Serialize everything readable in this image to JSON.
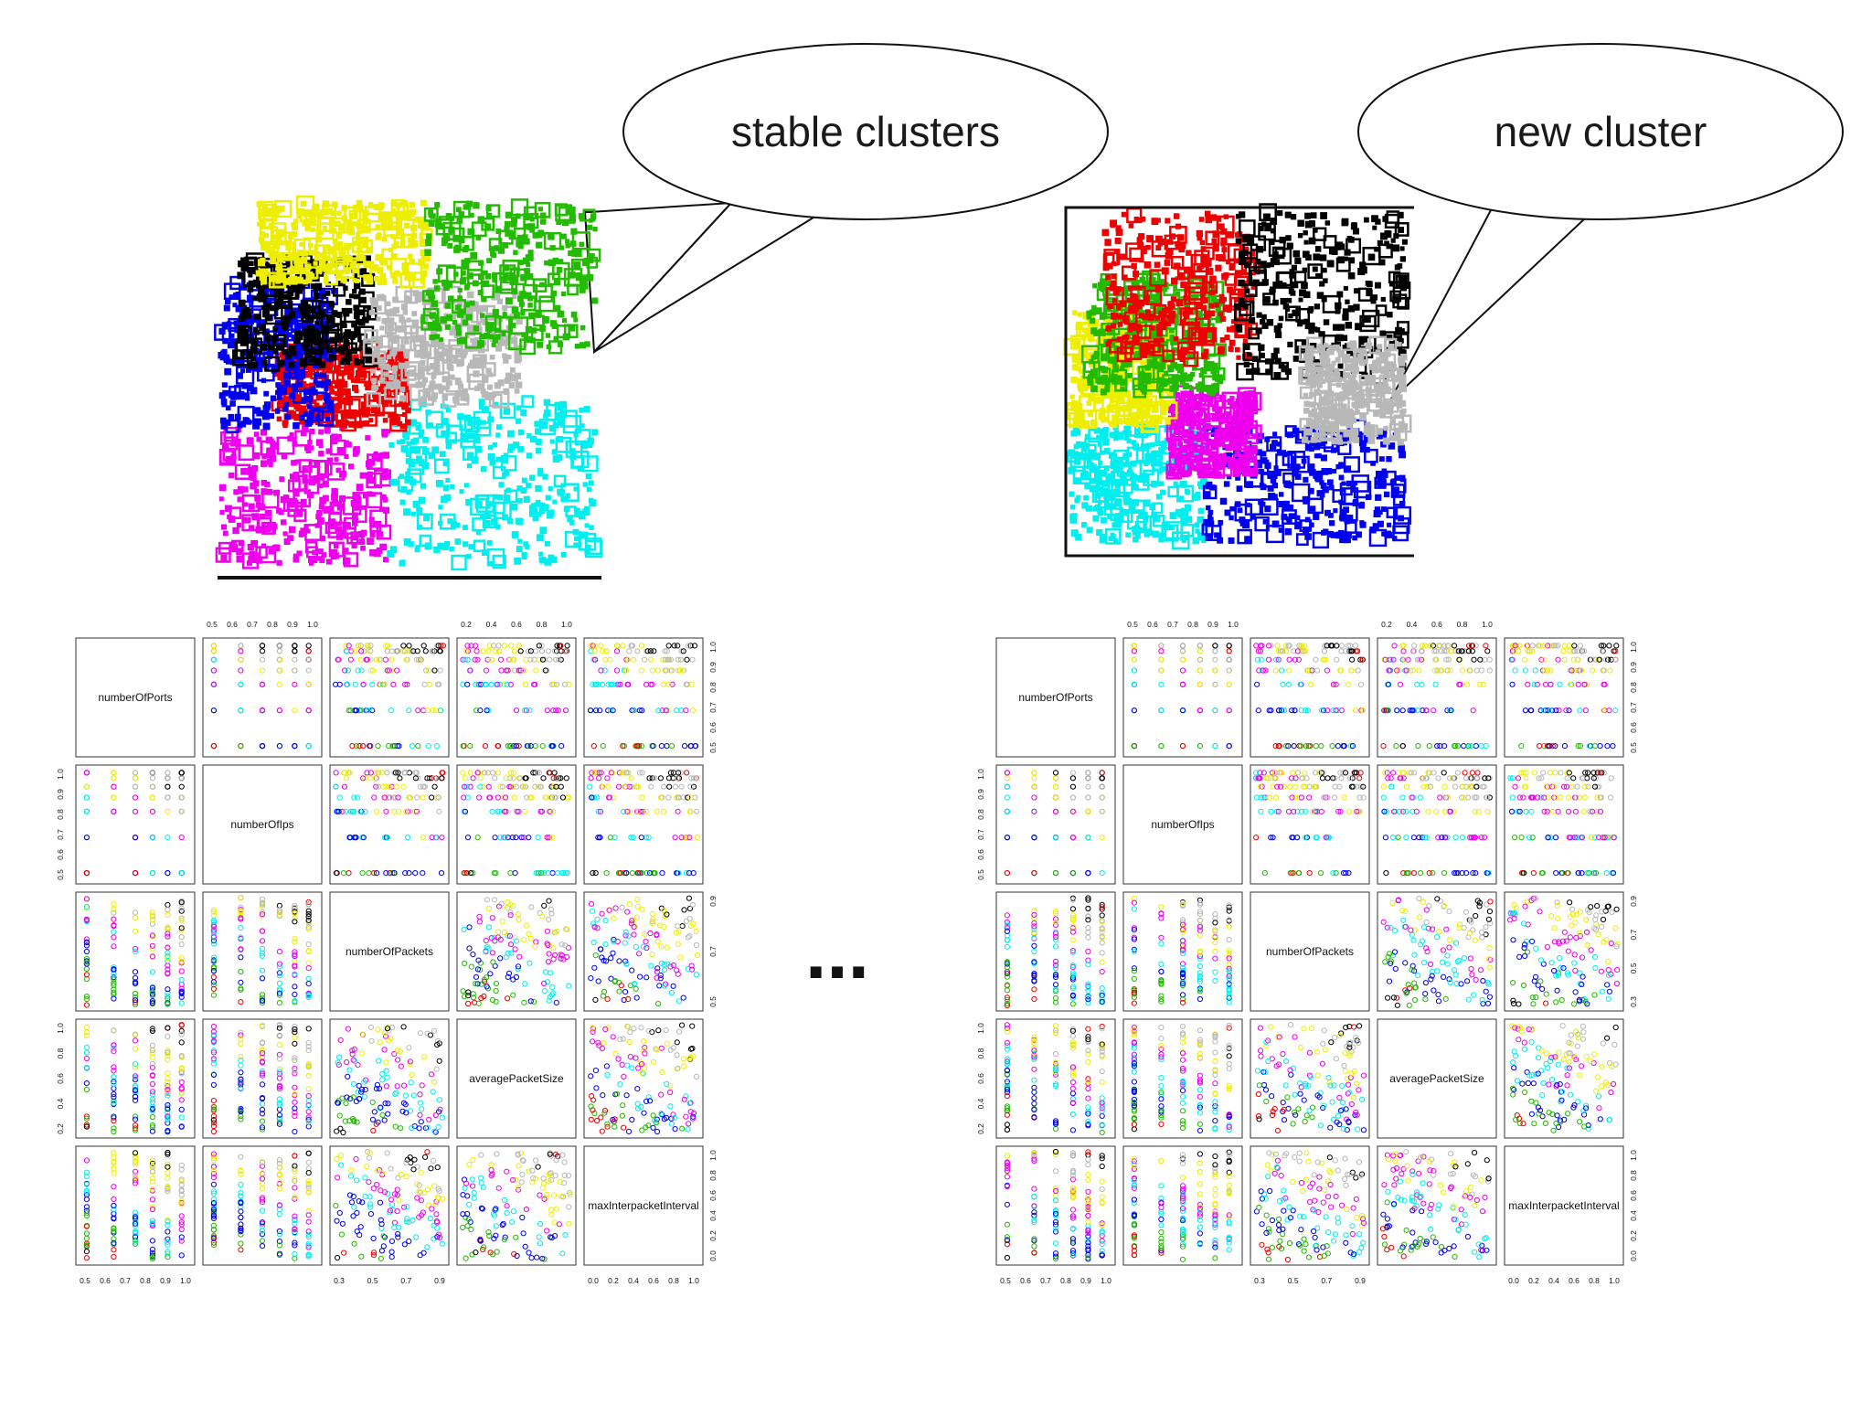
{
  "callouts": {
    "left_label": "stable clusters",
    "right_label": "new cluster"
  },
  "ellipsis": "...",
  "colors": {
    "black": "#000000",
    "red": "#ee0000",
    "green": "#22bb00",
    "blue": "#0000ee",
    "cyan": "#00eeee",
    "magenta": "#ee00ee",
    "yellow": "#eeee00",
    "gray": "#b8b8b8"
  },
  "chart_data": [
    {
      "type": "scatter",
      "id": "left-cluster-scatter",
      "description_type": "2D cluster map",
      "clusters": [
        {
          "color": "magenta",
          "region": [
            0.0,
            0.0,
            0.45,
            0.38
          ]
        },
        {
          "color": "cyan",
          "region": [
            0.45,
            0.0,
            1.0,
            0.45
          ]
        },
        {
          "color": "red",
          "region": [
            0.15,
            0.38,
            0.5,
            0.6
          ]
        },
        {
          "color": "blue",
          "region": [
            0.0,
            0.38,
            0.3,
            0.78
          ]
        },
        {
          "color": "black",
          "region": [
            0.05,
            0.55,
            0.4,
            0.85
          ]
        },
        {
          "color": "gray",
          "region": [
            0.4,
            0.45,
            0.8,
            0.75
          ]
        },
        {
          "color": "yellow",
          "region": [
            0.1,
            0.78,
            0.55,
            1.0
          ]
        },
        {
          "color": "green",
          "region": [
            0.55,
            0.6,
            1.0,
            1.0
          ]
        }
      ]
    },
    {
      "type": "scatter",
      "id": "right-cluster-scatter",
      "description_type": "2D cluster map",
      "clusters": [
        {
          "color": "cyan",
          "region": [
            0.0,
            0.0,
            0.4,
            0.35
          ]
        },
        {
          "color": "blue",
          "region": [
            0.4,
            0.0,
            1.0,
            0.35
          ]
        },
        {
          "color": "magenta",
          "region": [
            0.3,
            0.2,
            0.55,
            0.45
          ]
        },
        {
          "color": "yellow",
          "region": [
            0.0,
            0.35,
            0.3,
            0.7
          ]
        },
        {
          "color": "green",
          "region": [
            0.05,
            0.45,
            0.45,
            0.8
          ]
        },
        {
          "color": "red",
          "region": [
            0.1,
            0.55,
            0.55,
            1.0
          ]
        },
        {
          "color": "black",
          "region": [
            0.5,
            0.5,
            1.0,
            1.0
          ]
        },
        {
          "color": "gray",
          "region": [
            0.7,
            0.3,
            1.0,
            0.6
          ]
        }
      ]
    },
    {
      "type": "scatter",
      "id": "left-scatter-matrix",
      "variables": [
        "numberOfPorts",
        "numberOfIps",
        "numberOfPackets",
        "averagePacketSize",
        "maxInterpacketInterval"
      ],
      "top_axis_ticks": {
        "1": [
          "0.5",
          "0.6",
          "0.7",
          "0.8",
          "0.9",
          "1.0"
        ],
        "3": [
          "0.2",
          "0.4",
          "0.6",
          "0.8",
          "1.0"
        ]
      },
      "right_axis_ticks": {
        "0": [
          "0.5",
          "0.6",
          "0.7",
          "0.8",
          "0.9",
          "1.0"
        ],
        "2": [
          "0.5",
          "0.7",
          "0.9"
        ],
        "4": [
          "0.0",
          "0.2",
          "0.4",
          "0.6",
          "0.8",
          "1.0"
        ]
      },
      "left_axis_ticks": {
        "1": [
          "0.5",
          "0.6",
          "0.7",
          "0.8",
          "0.9",
          "1.0"
        ],
        "3": [
          "0.2",
          "0.4",
          "0.6",
          "0.8",
          "1.0"
        ]
      },
      "bottom_axis_ticks": {
        "0": [
          "0.5",
          "0.6",
          "0.7",
          "0.8",
          "0.9",
          "1.0"
        ],
        "2": [
          "0.3",
          "0.5",
          "0.7",
          "0.9"
        ],
        "4": [
          "0.0",
          "0.2",
          "0.4",
          "0.6",
          "0.8",
          "1.0"
        ]
      }
    },
    {
      "type": "scatter",
      "id": "right-scatter-matrix",
      "variables": [
        "numberOfPorts",
        "numberOfIps",
        "numberOfPackets",
        "averagePacketSize",
        "maxInterpacketInterval"
      ],
      "top_axis_ticks": {
        "1": [
          "0.5",
          "0.6",
          "0.7",
          "0.8",
          "0.9",
          "1.0"
        ],
        "3": [
          "0.2",
          "0.4",
          "0.6",
          "0.8",
          "1.0"
        ]
      },
      "right_axis_ticks": {
        "0": [
          "0.5",
          "0.6",
          "0.7",
          "0.8",
          "0.9",
          "1.0"
        ],
        "2": [
          "0.3",
          "0.5",
          "0.7",
          "0.9"
        ],
        "4": [
          "0.0",
          "0.2",
          "0.4",
          "0.6",
          "0.8",
          "1.0"
        ]
      },
      "left_axis_ticks": {
        "1": [
          "0.5",
          "0.6",
          "0.7",
          "0.8",
          "0.9",
          "1.0"
        ],
        "3": [
          "0.2",
          "0.4",
          "0.6",
          "0.8",
          "1.0"
        ]
      },
      "bottom_axis_ticks": {
        "0": [
          "0.5",
          "0.6",
          "0.7",
          "0.8",
          "0.9",
          "1.0"
        ],
        "2": [
          "0.3",
          "0.5",
          "0.7",
          "0.9"
        ],
        "4": [
          "0.0",
          "0.2",
          "0.4",
          "0.6",
          "0.8",
          "1.0"
        ]
      }
    }
  ]
}
